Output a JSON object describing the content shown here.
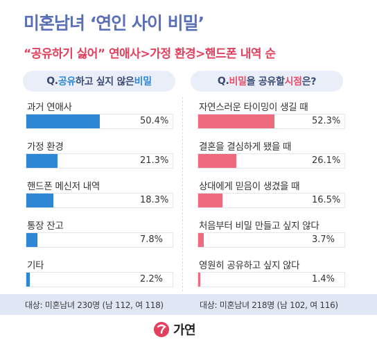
{
  "title": "미혼남녀 ‘연인 사이 비밀’",
  "subtitle": "“공유하기 싫어” 연애사>가정 환경>핸드폰 내역 순",
  "logo": {
    "text": "가연",
    "icon": "gayeon-logo-icon",
    "color": "#e2405c"
  },
  "colors": {
    "left_bar": "#2f86d4",
    "right_bar": "#ee6a7d",
    "title": "#5a6fb6",
    "subtitle": "#e2405c"
  },
  "chart_data": [
    {
      "type": "bar",
      "orientation": "horizontal",
      "title_parts": [
        "Q. ",
        "공유",
        "하고 싶지 않은 ",
        "비밀"
      ],
      "categories": [
        "과거 연애사",
        "가정 환경",
        "핸드폰 메신저 내역",
        "통장 잔고",
        "기타"
      ],
      "values": [
        50.4,
        21.3,
        18.3,
        7.8,
        2.2
      ],
      "value_labels": [
        "50.4%",
        "21.3%",
        "18.3%",
        "7.8%",
        "2.2%"
      ],
      "xlim": [
        0,
        100
      ],
      "footnote": "대상: 미혼남녀 230명 (남 112, 여 118)"
    },
    {
      "type": "bar",
      "orientation": "horizontal",
      "title_parts": [
        "Q. ",
        "비밀",
        "을 공유할 ",
        "시점",
        "은?"
      ],
      "categories": [
        "자연스러운 타이밍이 생길 때",
        "결혼을 결심하게 됐을 때",
        "상대에게 믿음이 생겼을 때",
        "처음부터 비밀 만들고 싶지 않다",
        "영원히 공유하고 싶지 않다"
      ],
      "values": [
        52.3,
        26.1,
        16.5,
        3.7,
        1.4
      ],
      "value_labels": [
        "52.3%",
        "26.1%",
        "16.5%",
        "3.7%",
        "1.4%"
      ],
      "xlim": [
        0,
        100
      ],
      "footnote": "대상: 미혼남녀 218명 (남 102, 여 116)"
    }
  ]
}
